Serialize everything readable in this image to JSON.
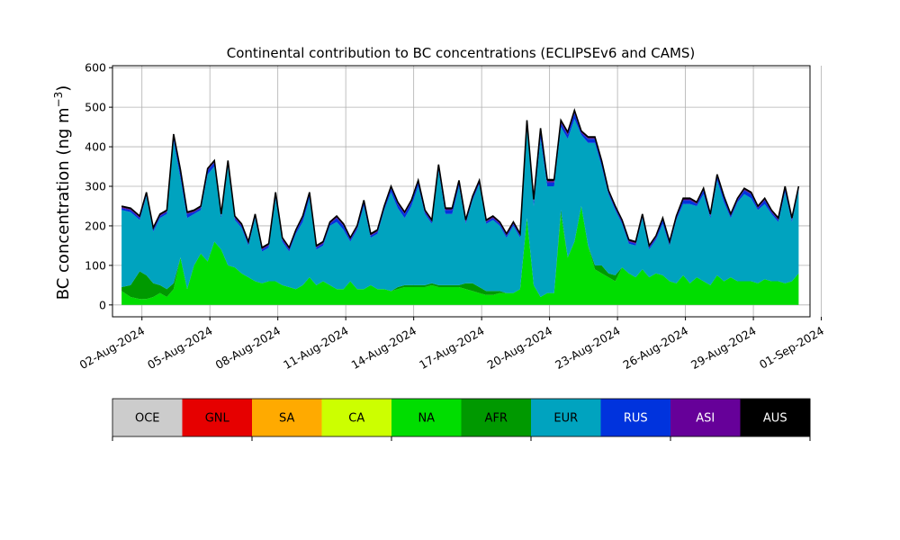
{
  "chart_data": {
    "type": "area",
    "title": "Continental contribution to BC concentrations (ECLIPSEv6 and CAMS)",
    "ylabel_text": "BC concentration (ng m",
    "ylabel_unit_tail": ")",
    "ylabel_superscript": "−3",
    "ylim": [
      -30,
      605
    ],
    "yticks": [
      0,
      100,
      200,
      300,
      400,
      500,
      600
    ],
    "xlim": [
      -1.3,
      29.5
    ],
    "xticks": [
      {
        "day": 0,
        "label": "02-Aug-2024"
      },
      {
        "day": 3,
        "label": "05-Aug-2024"
      },
      {
        "day": 6,
        "label": "08-Aug-2024"
      },
      {
        "day": 9,
        "label": "11-Aug-2024"
      },
      {
        "day": 12,
        "label": "14-Aug-2024"
      },
      {
        "day": 15,
        "label": "17-Aug-2024"
      },
      {
        "day": 18,
        "label": "20-Aug-2024"
      },
      {
        "day": 21,
        "label": "23-Aug-2024"
      },
      {
        "day": 24,
        "label": "26-Aug-2024"
      },
      {
        "day": 27,
        "label": "29-Aug-2024"
      },
      {
        "day": 30,
        "label": "01-Sep-2024"
      }
    ],
    "grid": true,
    "legend_placement": "bottom",
    "legend": [
      {
        "name": "OCE",
        "color": "#cccccc"
      },
      {
        "name": "GNL",
        "color": "#e60000"
      },
      {
        "name": "SA",
        "color": "#ffaa00"
      },
      {
        "name": "CA",
        "color": "#ccff00"
      },
      {
        "name": "NA",
        "color": "#00dd00"
      },
      {
        "name": "AFR",
        "color": "#009900"
      },
      {
        "name": "EUR",
        "color": "#00a3bf"
      },
      {
        "name": "RUS",
        "color": "#0033dd"
      },
      {
        "name": "ASI",
        "color": "#660099"
      },
      {
        "name": "AUS",
        "color": "#000000"
      }
    ],
    "x_days": [
      -0.9,
      -0.5,
      -0.1,
      0.2,
      0.5,
      0.8,
      1.1,
      1.4,
      1.7,
      2.0,
      2.3,
      2.6,
      2.9,
      3.2,
      3.5,
      3.8,
      4.1,
      4.4,
      4.7,
      5.0,
      5.3,
      5.6,
      5.9,
      6.2,
      6.5,
      6.8,
      7.1,
      7.4,
      7.7,
      8.0,
      8.3,
      8.6,
      8.9,
      9.2,
      9.5,
      9.8,
      10.1,
      10.4,
      10.7,
      11.0,
      11.3,
      11.6,
      11.9,
      12.2,
      12.5,
      12.8,
      13.1,
      13.4,
      13.7,
      14.0,
      14.3,
      14.6,
      14.9,
      15.2,
      15.5,
      15.8,
      16.1,
      16.4,
      16.7,
      17.0,
      17.3,
      17.6,
      17.9,
      18.2,
      18.5,
      18.8,
      19.1,
      19.4,
      19.7,
      20.0,
      20.3,
      20.6,
      20.9,
      21.2,
      21.5,
      21.8,
      22.1,
      22.4,
      22.7,
      23.0,
      23.3,
      23.6,
      23.9,
      24.2,
      24.5,
      24.8,
      25.1,
      25.4,
      25.7,
      26.0,
      26.3,
      26.6,
      26.9,
      27.2,
      27.5,
      27.8,
      28.1,
      28.4,
      28.7,
      29.0
    ],
    "series": [
      {
        "name": "OCE",
        "values": [
          0,
          0,
          0,
          0,
          0,
          0,
          0,
          0,
          0,
          0,
          0,
          0,
          0,
          0,
          0,
          0,
          0,
          0,
          0,
          0,
          0,
          0,
          0,
          0,
          0,
          0,
          0,
          0,
          0,
          0,
          0,
          0,
          0,
          0,
          0,
          0,
          0,
          0,
          0,
          0,
          0,
          0,
          0,
          0,
          0,
          0,
          0,
          0,
          0,
          0,
          0,
          0,
          0,
          0,
          0,
          0,
          0,
          0,
          0,
          0,
          0,
          0,
          0,
          0,
          0,
          0,
          0,
          0,
          0,
          0,
          0,
          0,
          0,
          0,
          0,
          0,
          0,
          0,
          0,
          0,
          0,
          0,
          0,
          0,
          0,
          0,
          0,
          0,
          0,
          0,
          0,
          0,
          0,
          0,
          0,
          0,
          0,
          0,
          0,
          0
        ]
      },
      {
        "name": "GNL",
        "values": [
          0,
          0,
          0,
          0,
          0,
          0,
          0,
          0,
          0,
          0,
          0,
          0,
          0,
          0,
          0,
          0,
          0,
          0,
          0,
          0,
          0,
          0,
          0,
          0,
          0,
          0,
          0,
          0,
          0,
          0,
          0,
          0,
          0,
          0,
          0,
          0,
          0,
          0,
          0,
          0,
          0,
          0,
          0,
          0,
          0,
          0,
          0,
          0,
          0,
          0,
          0,
          0,
          0,
          0,
          0,
          0,
          0,
          0,
          0,
          0,
          0,
          0,
          0,
          0,
          0,
          0,
          0,
          0,
          0,
          0,
          0,
          0,
          0,
          0,
          0,
          0,
          0,
          0,
          0,
          0,
          0,
          0,
          0,
          0,
          0,
          0,
          0,
          0,
          0,
          0,
          0,
          0,
          0,
          0,
          0,
          0,
          0,
          0,
          0,
          0
        ]
      },
      {
        "name": "SA",
        "values": [
          0,
          0,
          0,
          0,
          0,
          0,
          0,
          0,
          0,
          0,
          0,
          0,
          0,
          0,
          0,
          0,
          0,
          0,
          0,
          0,
          0,
          0,
          0,
          0,
          0,
          0,
          0,
          0,
          0,
          0,
          0,
          0,
          0,
          0,
          0,
          0,
          0,
          0,
          0,
          0,
          0,
          0,
          0,
          0,
          0,
          0,
          0,
          0,
          0,
          0,
          0,
          0,
          0,
          0,
          0,
          0,
          0,
          0,
          0,
          0,
          0,
          0,
          0,
          0,
          0,
          0,
          0,
          0,
          0,
          0,
          0,
          0,
          0,
          0,
          0,
          0,
          0,
          0,
          0,
          0,
          0,
          0,
          0,
          0,
          0,
          0,
          0,
          0,
          0,
          0,
          0,
          0,
          0,
          0,
          0,
          0,
          0,
          0,
          0,
          0
        ]
      },
      {
        "name": "CA",
        "values": [
          0,
          0,
          0,
          0,
          0,
          0,
          0,
          0,
          0,
          0,
          0,
          0,
          0,
          0,
          0,
          0,
          0,
          0,
          0,
          0,
          0,
          0,
          0,
          0,
          0,
          0,
          0,
          0,
          0,
          0,
          0,
          0,
          0,
          0,
          0,
          0,
          0,
          0,
          0,
          0,
          0,
          0,
          0,
          0,
          0,
          0,
          0,
          0,
          0,
          0,
          0,
          0,
          0,
          0,
          0,
          0,
          0,
          0,
          0,
          0,
          0,
          0,
          0,
          0,
          0,
          0,
          0,
          0,
          0,
          0,
          0,
          0,
          0,
          0,
          0,
          0,
          0,
          0,
          0,
          0,
          0,
          0,
          0,
          0,
          0,
          0,
          0,
          0,
          0,
          0,
          0,
          0,
          0,
          0,
          0,
          0,
          0,
          0,
          0,
          0
        ]
      },
      {
        "name": "NA",
        "values": [
          35,
          20,
          15,
          15,
          20,
          30,
          20,
          40,
          120,
          40,
          100,
          130,
          110,
          160,
          140,
          100,
          95,
          80,
          70,
          60,
          55,
          60,
          60,
          50,
          45,
          40,
          50,
          70,
          50,
          60,
          50,
          40,
          40,
          60,
          40,
          40,
          50,
          40,
          40,
          35,
          40,
          45,
          45,
          45,
          45,
          50,
          45,
          45,
          45,
          45,
          40,
          35,
          30,
          25,
          25,
          30,
          30,
          30,
          40,
          220,
          50,
          20,
          30,
          30,
          230,
          120,
          160,
          250,
          150,
          90,
          80,
          70,
          60,
          95,
          80,
          70,
          90,
          70,
          80,
          75,
          60,
          55,
          75,
          55,
          70,
          60,
          50,
          75,
          60,
          70,
          60,
          60,
          60,
          55,
          65,
          60,
          60,
          55,
          60,
          80
        ]
      },
      {
        "name": "AFR",
        "values": [
          10,
          30,
          70,
          60,
          35,
          20,
          20,
          15,
          0,
          0,
          0,
          0,
          0,
          0,
          0,
          0,
          0,
          0,
          0,
          0,
          0,
          0,
          0,
          0,
          0,
          0,
          0,
          0,
          0,
          0,
          0,
          0,
          0,
          0,
          0,
          0,
          0,
          0,
          0,
          0,
          5,
          5,
          5,
          5,
          5,
          5,
          5,
          5,
          5,
          5,
          15,
          20,
          15,
          10,
          10,
          5,
          0,
          0,
          0,
          0,
          0,
          0,
          0,
          0,
          10,
          0,
          0,
          0,
          0,
          10,
          20,
          10,
          15,
          0,
          0,
          0,
          0,
          0,
          0,
          0,
          0,
          0,
          0,
          0,
          0,
          0,
          0,
          0,
          0,
          0,
          0,
          0,
          0,
          0,
          0,
          0,
          0,
          0,
          0,
          0
        ]
      },
      {
        "name": "EUR",
        "values": [
          195,
          185,
          130,
          200,
          130,
          170,
          190,
          360,
          200,
          180,
          130,
          110,
          220,
          190,
          80,
          250,
          120,
          115,
          80,
          160,
          80,
          85,
          210,
          110,
          90,
          140,
          160,
          200,
          90,
          90,
          150,
          170,
          150,
          100,
          150,
          210,
          120,
          140,
          200,
          250,
          200,
          170,
          200,
          250,
          180,
          150,
          290,
          180,
          180,
          250,
          150,
          210,
          260,
          170,
          180,
          165,
          140,
          170,
          130,
          230,
          200,
          400,
          270,
          270,
          210,
          300,
          310,
          180,
          260,
          310,
          250,
          200,
          165,
          110,
          75,
          80,
          130,
          70,
          85,
          130,
          90,
          160,
          180,
          200,
          180,
          220,
          170,
          240,
          200,
          150,
          200,
          220,
          210,
          185,
          190,
          170,
          150,
          230,
          150,
          210
        ]
      },
      {
        "name": "RUS",
        "values": [
          5,
          5,
          5,
          5,
          5,
          5,
          5,
          10,
          15,
          10,
          5,
          5,
          10,
          10,
          5,
          10,
          5,
          5,
          5,
          5,
          5,
          5,
          10,
          5,
          5,
          5,
          10,
          10,
          5,
          5,
          5,
          10,
          10,
          5,
          5,
          10,
          5,
          5,
          5,
          10,
          10,
          10,
          10,
          10,
          5,
          5,
          10,
          10,
          10,
          10,
          5,
          5,
          5,
          5,
          5,
          5,
          5,
          5,
          5,
          10,
          10,
          20,
          10,
          10,
          10,
          10,
          15,
          5,
          10,
          10,
          10,
          5,
          5,
          5,
          5,
          5,
          5,
          5,
          5,
          10,
          5,
          5,
          10,
          10,
          5,
          10,
          5,
          10,
          10,
          5,
          5,
          10,
          10,
          5,
          10,
          5,
          5,
          10,
          5,
          5
        ]
      },
      {
        "name": "ASI",
        "values": [
          2,
          2,
          2,
          2,
          2,
          2,
          2,
          3,
          3,
          2,
          2,
          2,
          2,
          2,
          2,
          2,
          2,
          2,
          2,
          2,
          2,
          2,
          2,
          2,
          2,
          2,
          2,
          2,
          2,
          2,
          2,
          2,
          2,
          2,
          2,
          2,
          2,
          2,
          2,
          2,
          2,
          2,
          2,
          2,
          2,
          2,
          2,
          2,
          2,
          2,
          2,
          2,
          2,
          2,
          2,
          2,
          2,
          2,
          2,
          3,
          3,
          3,
          3,
          3,
          3,
          3,
          3,
          2,
          2,
          2,
          2,
          2,
          2,
          2,
          2,
          2,
          2,
          2,
          2,
          2,
          2,
          2,
          2,
          2,
          2,
          2,
          2,
          2,
          2,
          2,
          2,
          2,
          2,
          2,
          2,
          2,
          2,
          2,
          2,
          2
        ]
      },
      {
        "name": "AUS",
        "values": [
          3,
          3,
          3,
          3,
          3,
          3,
          3,
          4,
          4,
          3,
          3,
          3,
          3,
          3,
          3,
          3,
          3,
          3,
          3,
          3,
          3,
          3,
          3,
          3,
          3,
          3,
          3,
          3,
          3,
          3,
          3,
          3,
          3,
          3,
          3,
          3,
          3,
          3,
          3,
          3,
          3,
          3,
          3,
          3,
          3,
          3,
          3,
          3,
          3,
          3,
          3,
          3,
          3,
          3,
          3,
          3,
          3,
          3,
          3,
          4,
          4,
          4,
          4,
          4,
          4,
          4,
          4,
          3,
          3,
          3,
          3,
          3,
          3,
          3,
          3,
          3,
          3,
          3,
          3,
          3,
          3,
          3,
          3,
          3,
          3,
          3,
          3,
          3,
          3,
          3,
          3,
          3,
          3,
          3,
          3,
          3,
          3,
          3,
          3,
          3
        ]
      }
    ]
  }
}
